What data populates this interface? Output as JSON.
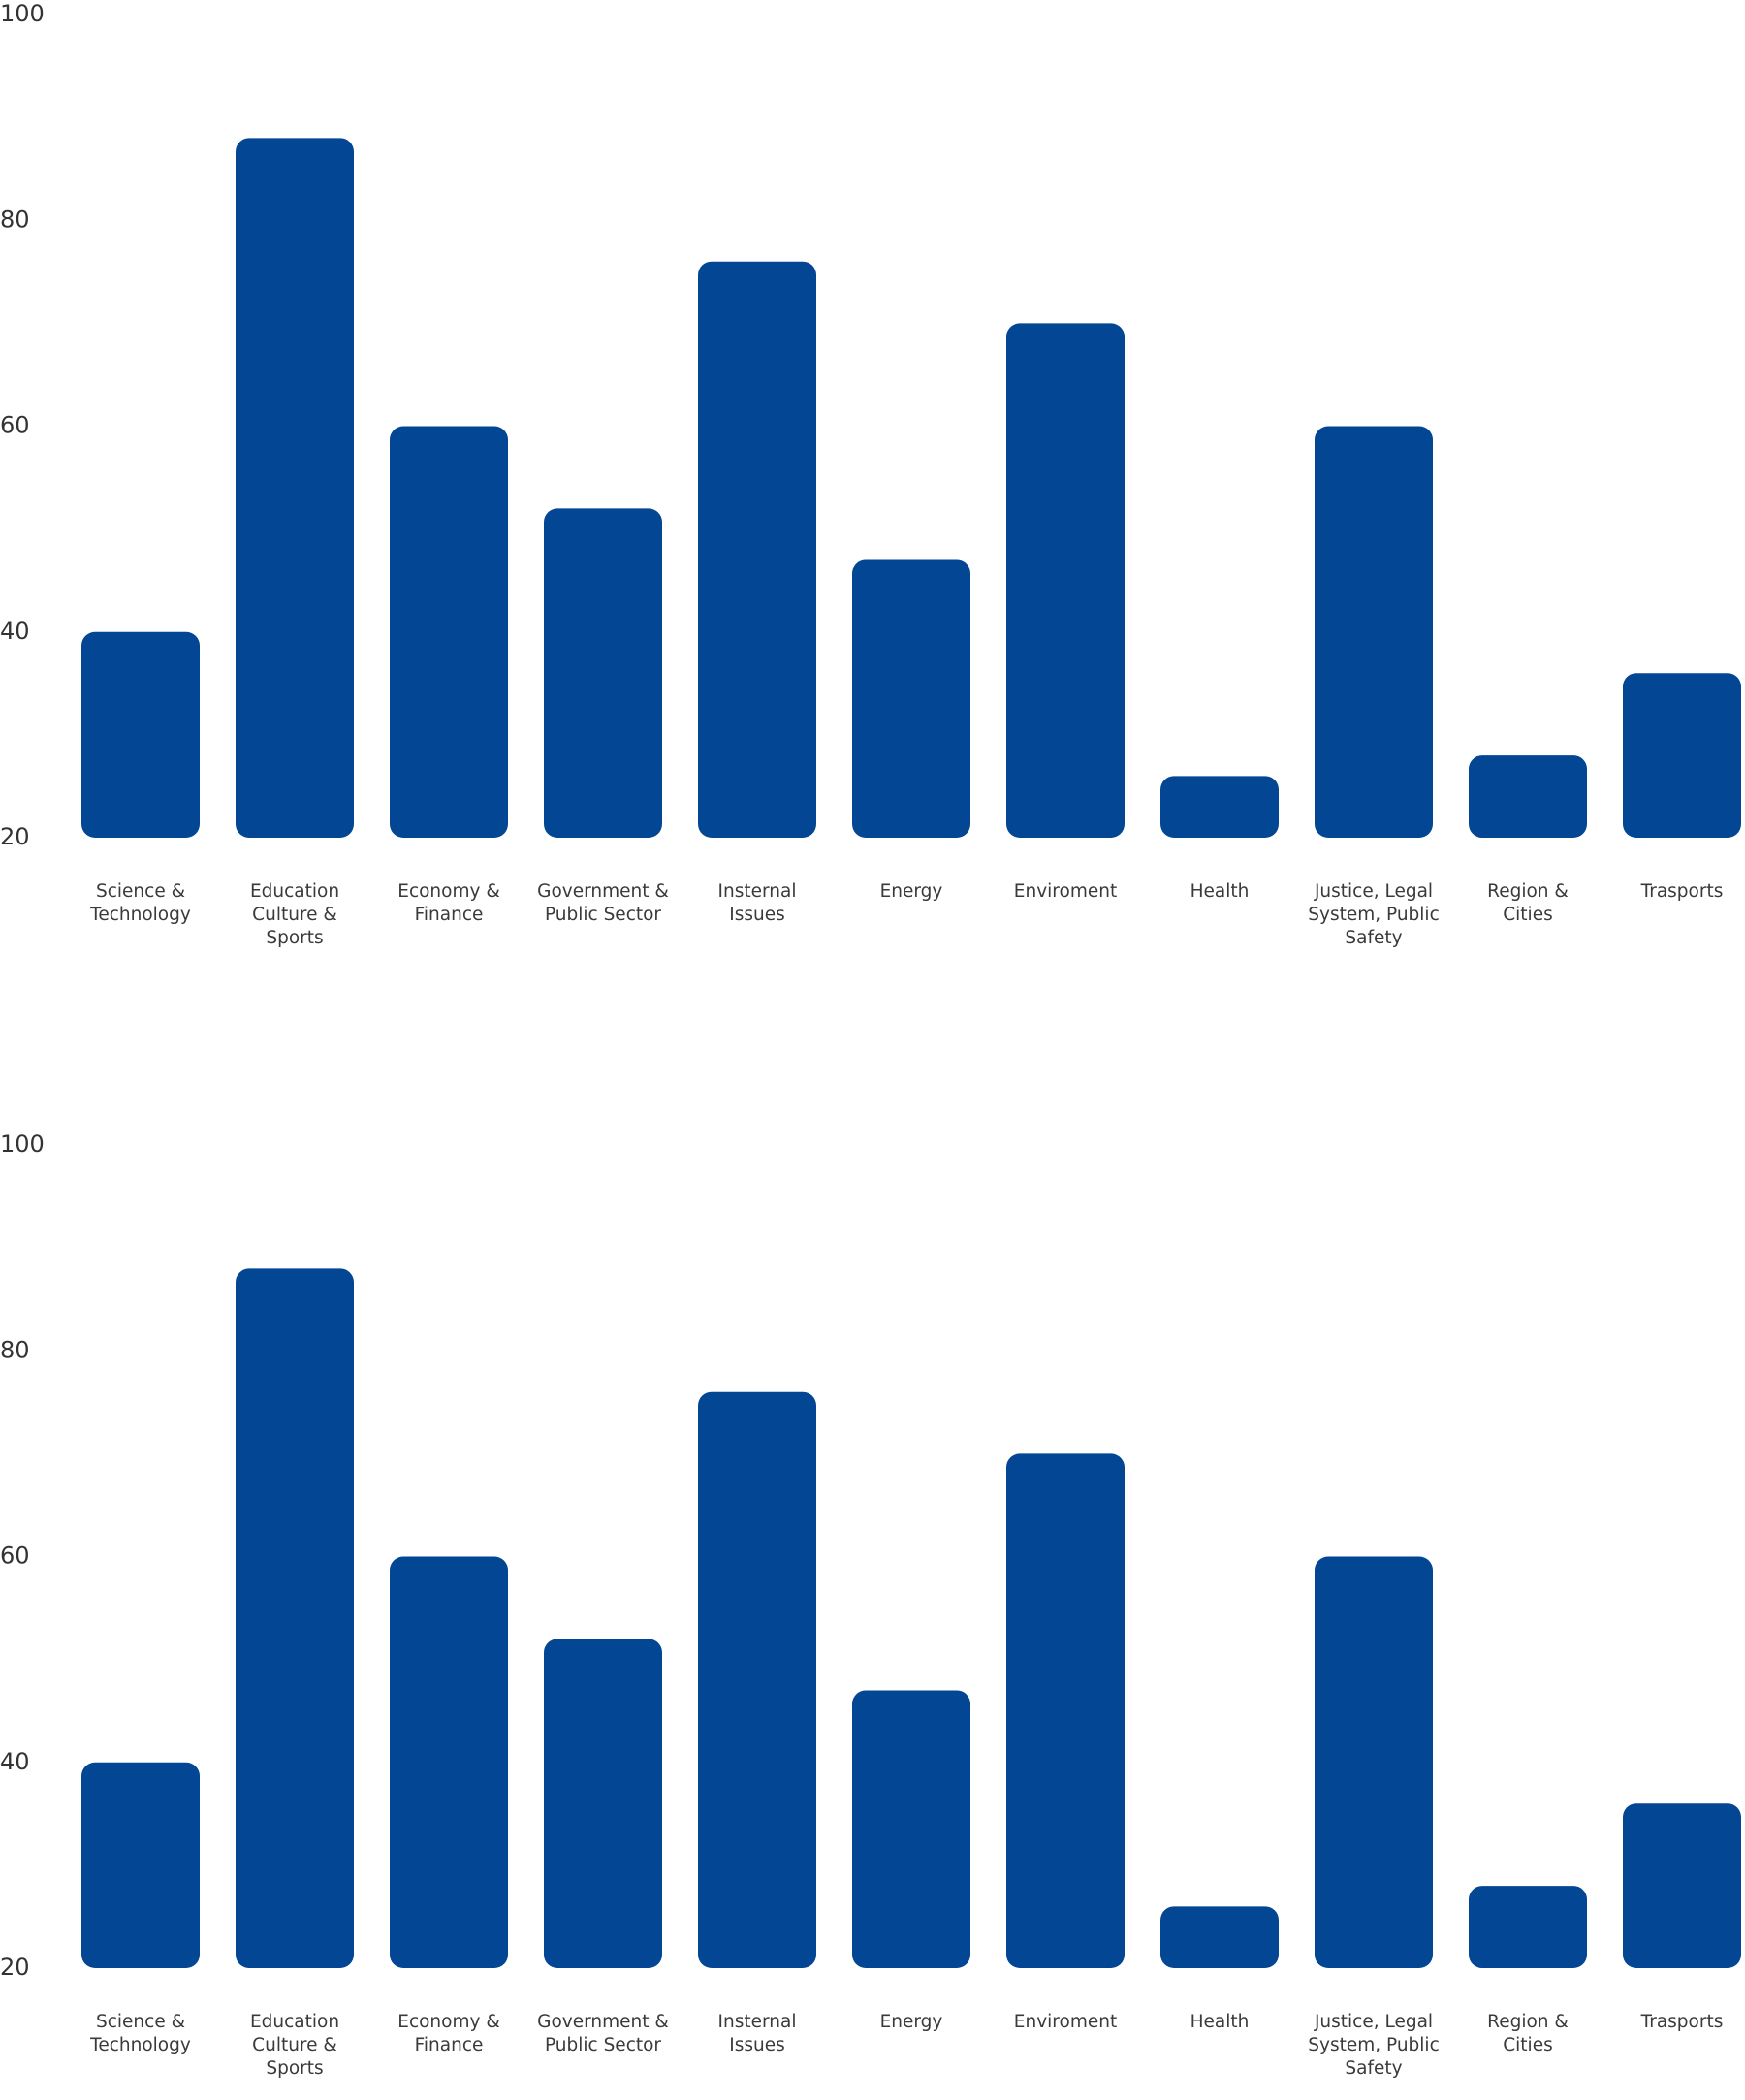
{
  "chart_data": [
    {
      "type": "bar",
      "categories": [
        [
          "Science &",
          "Technology"
        ],
        [
          "Education",
          "Culture &",
          "Sports"
        ],
        [
          "Economy &",
          "Finance"
        ],
        [
          "Government &",
          "Public Sector"
        ],
        [
          "Insternal",
          "Issues"
        ],
        [
          "Energy"
        ],
        [
          "Enviroment"
        ],
        [
          "Health"
        ],
        [
          "Justice, Legal",
          "System, Public",
          "Safety"
        ],
        [
          "Region &",
          "Cities"
        ],
        [
          "Trasports"
        ]
      ],
      "values": [
        40,
        88,
        60,
        52,
        76,
        47,
        70,
        26,
        60,
        28,
        36
      ],
      "ylim": [
        20,
        100
      ],
      "yticks": [
        "20",
        "40",
        "60",
        "80",
        "100"
      ],
      "bar_color": "#034694",
      "grid": false
    },
    {
      "type": "bar",
      "categories": [
        [
          "Science &",
          "Technology"
        ],
        [
          "Education",
          "Culture &",
          "Sports"
        ],
        [
          "Economy &",
          "Finance"
        ],
        [
          "Government &",
          "Public Sector"
        ],
        [
          "Insternal",
          "Issues"
        ],
        [
          "Energy"
        ],
        [
          "Enviroment"
        ],
        [
          "Health"
        ],
        [
          "Justice, Legal",
          "System, Public",
          "Safety"
        ],
        [
          "Region &",
          "Cities"
        ],
        [
          "Trasports"
        ]
      ],
      "values": [
        40,
        88,
        60,
        52,
        76,
        47,
        70,
        26,
        60,
        28,
        36
      ],
      "ylim": [
        20,
        100
      ],
      "yticks": [
        "20",
        "40",
        "60",
        "80",
        "100"
      ],
      "bar_color": "#034694",
      "grid": false
    }
  ]
}
